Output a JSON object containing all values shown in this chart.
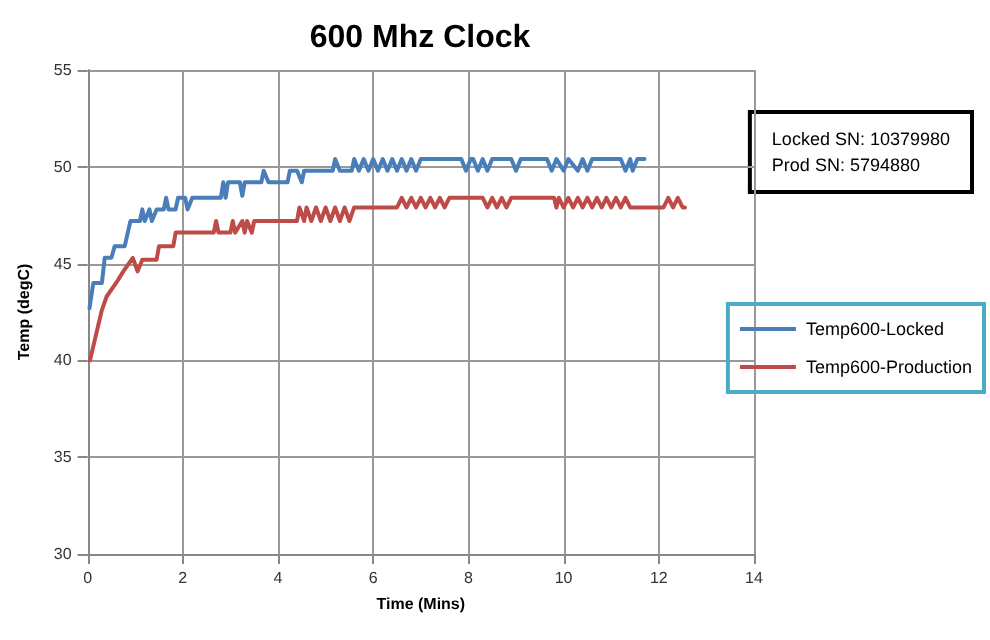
{
  "chart_data": {
    "type": "line",
    "title": "600 Mhz Clock",
    "xlabel": "Time (Mins)",
    "ylabel": "Temp (degC)",
    "annotations": [
      "Locked SN: 10379980\nProd SN: 5794880"
    ],
    "xlim": [
      0,
      14
    ],
    "xticks": [
      0,
      2,
      4,
      6,
      8,
      10,
      12,
      14
    ],
    "ylim": [
      30,
      55
    ],
    "yticks": [
      30,
      35,
      40,
      45,
      50,
      55
    ],
    "grid": true,
    "legend": "right",
    "marker": "none",
    "line_style": "solid",
    "series": [
      {
        "name": "Temp600-Locked",
        "color": "#4a7ebb",
        "x": [
          0.04,
          0.12,
          0.3,
          0.36,
          0.5,
          0.57,
          0.78,
          0.9,
          1.1,
          1.15,
          1.2,
          1.3,
          1.35,
          1.45,
          1.6,
          1.65,
          1.7,
          1.85,
          1.9,
          2.05,
          2.1,
          2.2,
          2.8,
          2.85,
          2.9,
          2.95,
          3.2,
          3.25,
          3.3,
          3.65,
          3.7,
          3.8,
          4.2,
          4.25,
          4.4,
          4.5,
          4.55,
          5.15,
          5.2,
          5.3,
          5.55,
          5.6,
          5.7,
          5.8,
          5.9,
          6.0,
          6.1,
          6.2,
          6.3,
          6.4,
          6.5,
          6.6,
          6.7,
          6.8,
          6.9,
          7.0,
          7.1,
          7.85,
          7.95,
          8.05,
          8.1,
          8.2,
          8.3,
          8.4,
          8.5,
          8.9,
          9.0,
          9.1,
          9.65,
          9.75,
          9.85,
          10.0,
          10.1,
          10.3,
          10.4,
          10.5,
          10.6,
          10.7,
          11.2,
          11.3,
          11.4,
          11.45,
          11.55,
          11.7
        ],
        "values": [
          42.7,
          44.0,
          44.0,
          45.3,
          45.3,
          45.9,
          45.9,
          47.2,
          47.2,
          47.8,
          47.2,
          47.8,
          47.2,
          47.8,
          47.8,
          48.4,
          47.8,
          47.8,
          48.4,
          48.4,
          47.8,
          48.4,
          48.4,
          49.2,
          48.4,
          49.2,
          49.2,
          48.5,
          49.2,
          49.2,
          49.8,
          49.2,
          49.2,
          49.8,
          49.8,
          49.2,
          49.8,
          49.8,
          50.4,
          49.8,
          49.8,
          50.4,
          49.8,
          50.4,
          49.8,
          50.4,
          49.8,
          50.4,
          49.8,
          50.4,
          49.8,
          50.4,
          49.8,
          50.4,
          49.8,
          50.4,
          50.4,
          50.4,
          49.8,
          50.4,
          50.4,
          49.8,
          50.4,
          49.8,
          50.4,
          50.4,
          49.8,
          50.4,
          50.4,
          49.8,
          50.4,
          49.8,
          50.4,
          49.8,
          50.4,
          49.8,
          50.4,
          50.4,
          50.4,
          49.8,
          50.4,
          49.8,
          50.4,
          50.4
        ]
      },
      {
        "name": "Temp600-Production",
        "color": "#be4b48",
        "x": [
          0.05,
          0.3,
          0.4,
          0.6,
          0.75,
          0.95,
          1.05,
          1.15,
          1.45,
          1.5,
          1.8,
          1.85,
          2.65,
          2.7,
          2.75,
          3.0,
          3.05,
          3.1,
          3.25,
          3.3,
          3.35,
          3.45,
          3.5,
          3.6,
          4.4,
          4.45,
          4.55,
          4.6,
          4.7,
          4.8,
          4.9,
          5.0,
          5.1,
          5.2,
          5.3,
          5.4,
          5.5,
          5.6,
          6.5,
          6.6,
          6.7,
          6.8,
          6.9,
          7.0,
          7.1,
          7.2,
          7.3,
          7.4,
          7.5,
          7.6,
          7.7,
          8.3,
          8.4,
          8.5,
          8.6,
          8.7,
          8.8,
          8.9,
          9.0,
          9.8,
          9.85,
          9.9,
          10.0,
          10.1,
          10.2,
          10.3,
          10.4,
          10.5,
          10.6,
          10.7,
          10.8,
          10.9,
          11.0,
          11.1,
          11.2,
          11.3,
          11.4,
          11.5,
          12.1,
          12.2,
          12.3,
          12.4,
          12.5,
          12.55
        ],
        "values": [
          40.0,
          42.6,
          43.3,
          44.0,
          44.6,
          45.3,
          44.6,
          45.2,
          45.2,
          45.9,
          45.9,
          46.6,
          46.6,
          47.2,
          46.6,
          46.6,
          47.2,
          46.6,
          47.2,
          46.6,
          47.2,
          46.6,
          47.2,
          47.2,
          47.2,
          47.9,
          47.2,
          47.9,
          47.2,
          47.9,
          47.2,
          47.9,
          47.2,
          47.9,
          47.2,
          47.9,
          47.2,
          47.9,
          47.9,
          48.4,
          47.9,
          48.4,
          47.9,
          48.4,
          47.9,
          48.4,
          47.9,
          48.4,
          47.9,
          48.4,
          48.4,
          48.4,
          47.9,
          48.4,
          47.9,
          48.4,
          47.9,
          48.4,
          48.4,
          48.4,
          47.9,
          48.4,
          47.9,
          48.4,
          47.9,
          48.4,
          47.9,
          48.4,
          47.9,
          48.4,
          47.9,
          48.4,
          47.9,
          48.4,
          47.9,
          48.4,
          47.9,
          47.9,
          47.9,
          48.4,
          47.9,
          48.4,
          47.9,
          47.9
        ]
      }
    ]
  }
}
